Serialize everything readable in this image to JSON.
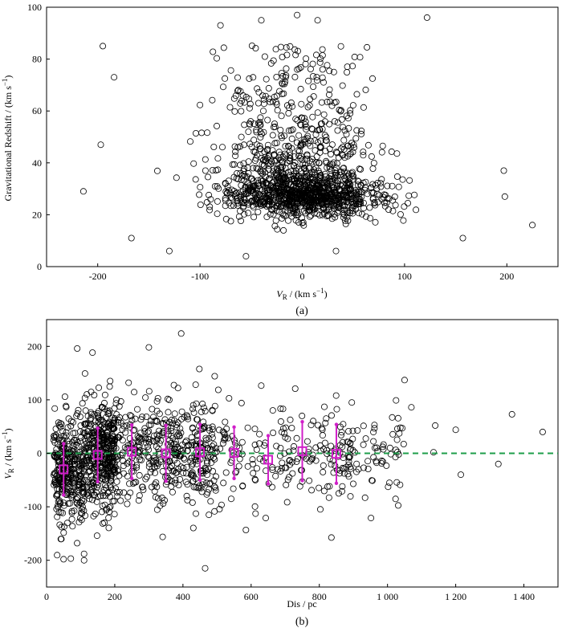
{
  "figure": {
    "panels": [
      "(a)",
      "(b)"
    ]
  },
  "chart_data": [
    {
      "type": "scatter",
      "panel_label": "(a)",
      "xlabel_main": "V",
      "xlabel_sub": "R",
      "xlabel_rest": " / (km s",
      "xlabel_sup": "−1",
      "xlabel_end": ")",
      "ylabel_main": "Gravitational Redshift / (km s",
      "ylabel_sup": "−1",
      "ylabel_end": ")",
      "xlim": [
        -250,
        250
      ],
      "ylim": [
        0,
        100
      ],
      "xticks": [
        -200,
        -100,
        0,
        100,
        200
      ],
      "xtick_labels": [
        "-200",
        "-100",
        "0",
        "100",
        "200"
      ],
      "yticks": [
        0,
        20,
        40,
        60,
        80,
        100
      ],
      "ytick_labels": [
        "0",
        "20",
        "40",
        "60",
        "80",
        "100"
      ],
      "marker": "open-circle",
      "marker_color": "#000000",
      "notable_points": [
        {
          "x": -214,
          "y": 29
        },
        {
          "x": -197,
          "y": 47
        },
        {
          "x": -195,
          "y": 85
        },
        {
          "x": -184,
          "y": 73
        },
        {
          "x": -167,
          "y": 11
        },
        {
          "x": -130,
          "y": 6
        },
        {
          "x": -80,
          "y": 93
        },
        {
          "x": -55,
          "y": 4
        },
        {
          "x": -40,
          "y": 95
        },
        {
          "x": -5,
          "y": 97
        },
        {
          "x": 15,
          "y": 95
        },
        {
          "x": 33,
          "y": 6
        },
        {
          "x": 122,
          "y": 96
        },
        {
          "x": 157,
          "y": 11
        },
        {
          "x": 197,
          "y": 37
        },
        {
          "x": 198,
          "y": 27
        },
        {
          "x": 225,
          "y": 16
        }
      ],
      "cluster": {
        "center_x": 0,
        "center_y": 27,
        "n_points": 1400
      }
    },
    {
      "type": "scatter",
      "panel_label": "(b)",
      "xlabel": "Dis / pc",
      "ylabel_main": "V",
      "ylabel_sub": "R",
      "ylabel_rest": " / (km s",
      "ylabel_sup": "−1",
      "ylabel_end": ")",
      "xlim": [
        0,
        1500
      ],
      "ylim": [
        -250,
        250
      ],
      "xticks": [
        0,
        200,
        400,
        600,
        800,
        1000,
        1200,
        1400
      ],
      "xtick_labels": [
        "0",
        "200",
        "400",
        "600",
        "800",
        "1 000",
        "1 200",
        "1 400"
      ],
      "yticks": [
        -200,
        -100,
        0,
        100,
        200
      ],
      "ytick_labels": [
        "-200",
        "-100",
        "0",
        "100",
        "200"
      ],
      "marker": "open-circle",
      "marker_color": "#000000",
      "reference_line": {
        "y": 0,
        "style": "dashed",
        "color": "#1e9e4a"
      },
      "binned_means": {
        "color": "#d01fc8",
        "marker": "open-square",
        "x": [
          50,
          150,
          250,
          350,
          450,
          550,
          650,
          750,
          850
        ],
        "y": [
          -30,
          -3,
          3,
          0,
          2,
          1,
          -12,
          4,
          -1
        ],
        "err": [
          48,
          50,
          50,
          52,
          52,
          48,
          45,
          55,
          55
        ]
      },
      "notable_points": [
        {
          "x": 50,
          "y": -198
        },
        {
          "x": 90,
          "y": 196
        },
        {
          "x": 110,
          "y": -188
        },
        {
          "x": 110,
          "y": -200
        },
        {
          "x": 300,
          "y": 198
        },
        {
          "x": 395,
          "y": 224
        },
        {
          "x": 465,
          "y": -215
        },
        {
          "x": 1050,
          "y": 137
        },
        {
          "x": 1070,
          "y": 86
        },
        {
          "x": 1135,
          "y": 2
        },
        {
          "x": 1140,
          "y": 52
        },
        {
          "x": 1200,
          "y": 44
        },
        {
          "x": 1215,
          "y": -40
        },
        {
          "x": 1325,
          "y": -20
        },
        {
          "x": 1365,
          "y": 73
        },
        {
          "x": 1455,
          "y": 40
        }
      ],
      "cluster": {
        "n_points": 1400
      }
    }
  ]
}
